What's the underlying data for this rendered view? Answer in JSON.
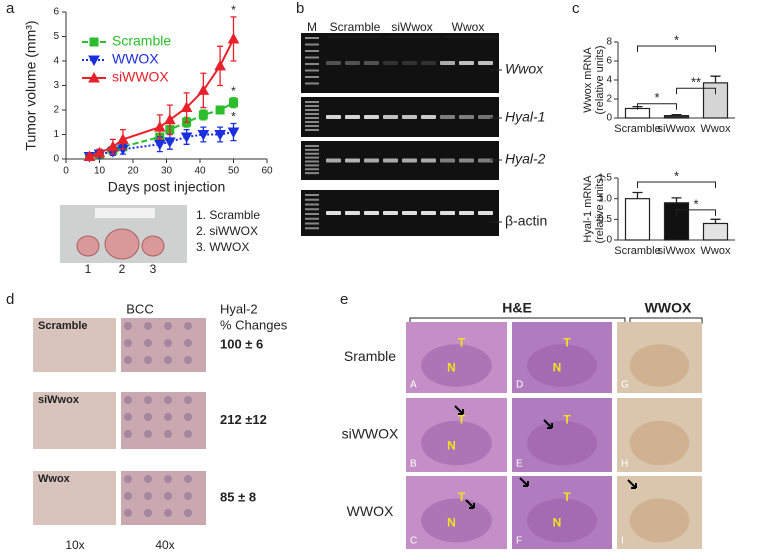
{
  "panel_labels": [
    "a",
    "b",
    "c",
    "d",
    "e"
  ],
  "chart_data": [
    {
      "type": "line",
      "xlabel": "Days post injection",
      "ylabel": "Tumor volume (mm³)",
      "x": [
        7,
        10,
        14,
        17,
        28,
        31,
        36,
        41,
        46,
        50
      ],
      "xlim": [
        0,
        60
      ],
      "xticks": [
        0,
        10,
        20,
        30,
        40,
        50,
        60
      ],
      "ylim": [
        0,
        6
      ],
      "yticks": [
        0,
        1,
        2,
        3,
        4,
        5,
        6
      ],
      "legend": "top-left",
      "series": [
        {
          "name": "Scramble",
          "color": "#2bbd2b",
          "line_style": "dashed",
          "marker": "square",
          "values": [
            0.1,
            0.2,
            0.35,
            0.5,
            0.9,
            1.2,
            1.5,
            1.8,
            2.0,
            2.3
          ],
          "errors": [
            0.05,
            0.05,
            0.1,
            0.1,
            0.15,
            0.15,
            0.2,
            0.2,
            0.15,
            0.2
          ]
        },
        {
          "name": "WWOX",
          "color": "#1a2fe0",
          "line_style": "dotted",
          "marker": "triangle-down",
          "values": [
            0.1,
            0.2,
            0.3,
            0.4,
            0.6,
            0.7,
            0.9,
            1.0,
            1.0,
            1.1
          ],
          "errors": [
            0.05,
            0.1,
            0.15,
            0.2,
            0.3,
            0.3,
            0.3,
            0.3,
            0.3,
            0.35
          ]
        },
        {
          "name": "siWWOX",
          "color": "#e8202a",
          "line_style": "solid",
          "marker": "triangle-up",
          "values": [
            0.1,
            0.25,
            0.5,
            0.8,
            1.3,
            1.6,
            2.1,
            2.8,
            3.8,
            4.9
          ],
          "errors": [
            0.1,
            0.15,
            0.3,
            0.4,
            0.5,
            0.6,
            0.6,
            0.7,
            0.8,
            0.9
          ]
        }
      ],
      "annotations": [
        "*",
        "*",
        "*"
      ]
    },
    {
      "type": "bar",
      "ylabel": [
        "Wwox mRNA",
        "(relative units)"
      ],
      "categories": [
        "Scramble",
        "siWwox",
        "Wwox"
      ],
      "values": [
        1.0,
        0.25,
        3.7
      ],
      "errors": [
        0.2,
        0.1,
        0.7
      ],
      "colors": [
        "#ffffff",
        "#333333",
        "#d6d6d6"
      ],
      "ylim": [
        0,
        8
      ],
      "yticks": [
        0,
        2,
        4,
        6,
        8
      ],
      "significance": [
        "*",
        "*",
        "**"
      ]
    },
    {
      "type": "bar",
      "ylabel": [
        "Hyal-1 mRNA",
        "(relative units)"
      ],
      "categories": [
        "Scramble",
        "siWwox",
        "Wwox"
      ],
      "values": [
        1.0,
        0.9,
        0.4
      ],
      "errors": [
        0.15,
        0.12,
        0.1
      ],
      "colors": [
        "#ffffff",
        "#111111",
        "#e4e4e4"
      ],
      "ylim": [
        0,
        1.5
      ],
      "yticks": [
        0,
        0.5,
        {
          "value": 1,
          "label": "1.0"
        },
        1.5
      ],
      "significance": [
        "*",
        "*"
      ]
    }
  ],
  "tumor_photo": {
    "numbers": [
      "1",
      "2",
      "3"
    ],
    "legend": [
      "1. Scramble",
      "2. siWWOX",
      "3. WWOX"
    ]
  },
  "gel": {
    "lanes": [
      "M",
      "Scramble",
      "siWwox",
      "Wwox"
    ],
    "genes": [
      "Wwox",
      "Hyal-1",
      "Hyal-2",
      "β-actin"
    ]
  },
  "bcc": {
    "title": "BCC",
    "column_header": [
      "Hyal-2",
      "% Changes"
    ],
    "rows": [
      {
        "label": "Scramble",
        "change": "100 ± 6"
      },
      {
        "label": "siWwox",
        "change": "212 ±12"
      },
      {
        "label": "Wwox",
        "change": "85 ± 8"
      }
    ],
    "magnifications": [
      "10x",
      "40x"
    ]
  },
  "histology": {
    "headers": [
      "H&E",
      "WWOX"
    ],
    "rows": [
      "Sramble",
      "siWWOX",
      "WWOX"
    ],
    "panels": [
      {
        "letter": "A",
        "marks": [
          "T",
          "N"
        ]
      },
      {
        "letter": "B",
        "marks": [
          "T",
          "N"
        ]
      },
      {
        "letter": "C",
        "marks": [
          "T",
          "N"
        ]
      },
      {
        "letter": "D",
        "marks": [
          "T",
          "N"
        ]
      },
      {
        "letter": "E",
        "marks": [
          "T"
        ]
      },
      {
        "letter": "F",
        "marks": [
          "T",
          "N"
        ]
      },
      {
        "letter": "G"
      },
      {
        "letter": "H"
      },
      {
        "letter": "I"
      }
    ]
  }
}
